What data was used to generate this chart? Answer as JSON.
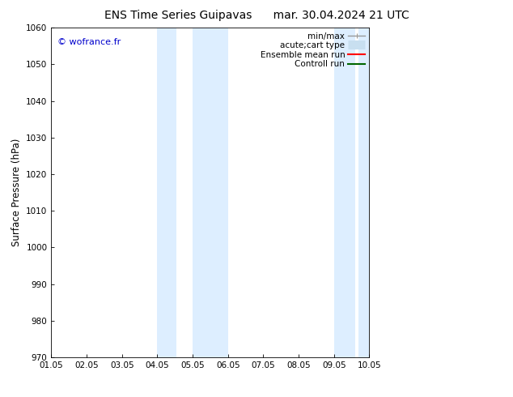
{
  "title_left": "ENS Time Series Guipavas",
  "title_right": "mar. 30.04.2024 21 UTC",
  "ylabel": "Surface Pressure (hPa)",
  "ylim": [
    970,
    1060
  ],
  "yticks": [
    970,
    980,
    990,
    1000,
    1010,
    1020,
    1030,
    1040,
    1050,
    1060
  ],
  "xlim": [
    0,
    9
  ],
  "xtick_labels": [
    "01.05",
    "02.05",
    "03.05",
    "04.05",
    "05.05",
    "06.05",
    "07.05",
    "08.05",
    "09.05",
    "10.05"
  ],
  "xtick_positions": [
    0,
    1,
    2,
    3,
    4,
    5,
    6,
    7,
    8,
    9
  ],
  "watermark": "© wofrance.fr",
  "watermark_color": "#0000cc",
  "bg_color": "#ffffff",
  "plot_bg_color": "#ffffff",
  "shaded_regions": [
    {
      "xmin": 3.0,
      "xmax": 3.5,
      "color": "#ddeeff"
    },
    {
      "xmin": 4.0,
      "xmax": 5.0,
      "color": "#ddeeff"
    },
    {
      "xmin": 8.0,
      "xmax": 8.5,
      "color": "#ddeeff"
    },
    {
      "xmin": 8.6,
      "xmax": 9.0,
      "color": "#ddeeff"
    }
  ],
  "legend_items": [
    {
      "label": "min/max",
      "color": "#999999",
      "lw": 1.0,
      "style": "errbar"
    },
    {
      "label": "acute;cart type",
      "color": "#c8dff0",
      "lw": 8,
      "style": "thick"
    },
    {
      "label": "Ensemble mean run",
      "color": "#ff0000",
      "lw": 1.5,
      "style": "line"
    },
    {
      "label": "Controll run",
      "color": "#006600",
      "lw": 1.5,
      "style": "line"
    }
  ],
  "title_fontsize": 10,
  "tick_fontsize": 7.5,
  "ylabel_fontsize": 8.5,
  "watermark_fontsize": 8,
  "legend_fontsize": 7.5
}
